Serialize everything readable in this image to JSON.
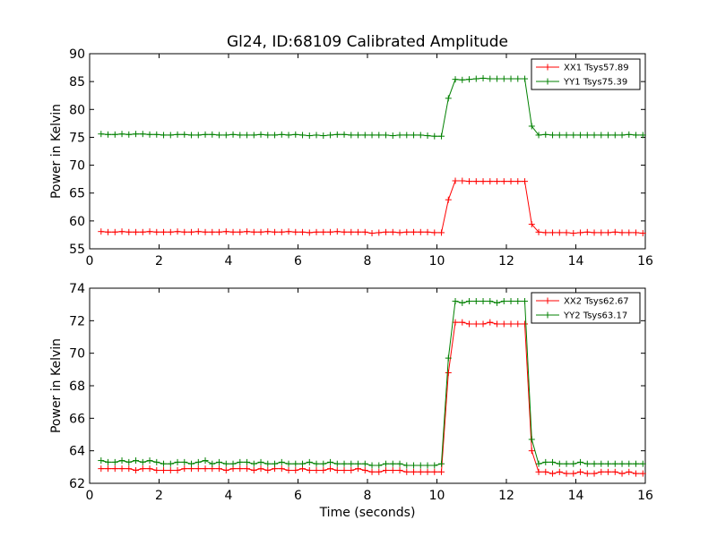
{
  "chart_data": [
    {
      "type": "line",
      "title": "Gl24, ID:68109 Calibrated Amplitude",
      "xlabel": "",
      "ylabel": "Power in Kelvin",
      "xlim": [
        0,
        16
      ],
      "ylim": [
        55,
        90
      ],
      "xticks": [
        "0",
        "2",
        "4",
        "6",
        "8",
        "10",
        "12",
        "14",
        "16"
      ],
      "yticks": [
        "55",
        "60",
        "65",
        "70",
        "75",
        "80",
        "85",
        "90"
      ],
      "grid": false,
      "legend_position": "top-right",
      "x": [
        0.33,
        0.53,
        0.73,
        0.93,
        1.13,
        1.33,
        1.53,
        1.73,
        1.93,
        2.13,
        2.33,
        2.53,
        2.73,
        2.93,
        3.13,
        3.33,
        3.53,
        3.73,
        3.93,
        4.13,
        4.33,
        4.53,
        4.73,
        4.93,
        5.13,
        5.33,
        5.53,
        5.73,
        5.93,
        6.13,
        6.33,
        6.53,
        6.73,
        6.93,
        7.13,
        7.33,
        7.53,
        7.73,
        7.93,
        8.13,
        8.33,
        8.53,
        8.73,
        8.93,
        9.13,
        9.33,
        9.53,
        9.73,
        9.93,
        10.13,
        10.33,
        10.53,
        10.73,
        10.93,
        11.13,
        11.33,
        11.53,
        11.73,
        11.93,
        12.13,
        12.33,
        12.53,
        12.73,
        12.93,
        13.13,
        13.33,
        13.53,
        13.73,
        13.93,
        14.13,
        14.33,
        14.53,
        14.73,
        14.93,
        15.13,
        15.33,
        15.53,
        15.73,
        15.93
      ],
      "series": [
        {
          "name": "XX1 Tsys57.89",
          "color": "#ff0000",
          "values": [
            58.1,
            58.0,
            58.0,
            58.1,
            58.0,
            58.0,
            58.0,
            58.1,
            58.0,
            58.0,
            58.0,
            58.1,
            58.0,
            58.0,
            58.1,
            58.0,
            58.0,
            58.0,
            58.1,
            58.0,
            58.0,
            58.1,
            58.0,
            58.0,
            58.1,
            58.0,
            58.0,
            58.1,
            58.0,
            58.0,
            57.9,
            58.0,
            58.0,
            58.0,
            58.1,
            58.0,
            58.0,
            58.0,
            58.0,
            57.8,
            57.9,
            58.0,
            58.0,
            57.9,
            58.0,
            58.0,
            58.0,
            58.0,
            57.9,
            57.9,
            63.8,
            67.2,
            67.2,
            67.1,
            67.1,
            67.1,
            67.1,
            67.1,
            67.1,
            67.1,
            67.1,
            67.1,
            59.4,
            58.0,
            57.9,
            57.9,
            57.9,
            57.9,
            57.8,
            57.9,
            58.0,
            57.9,
            57.9,
            57.9,
            58.0,
            57.9,
            57.9,
            57.9,
            57.8
          ]
        },
        {
          "name": "YY1 Tsys75.39",
          "color": "#008000",
          "values": [
            75.6,
            75.5,
            75.5,
            75.6,
            75.5,
            75.6,
            75.6,
            75.5,
            75.5,
            75.4,
            75.4,
            75.5,
            75.5,
            75.4,
            75.4,
            75.5,
            75.5,
            75.4,
            75.4,
            75.5,
            75.4,
            75.4,
            75.4,
            75.5,
            75.4,
            75.4,
            75.5,
            75.4,
            75.5,
            75.4,
            75.3,
            75.4,
            75.3,
            75.4,
            75.5,
            75.5,
            75.4,
            75.4,
            75.4,
            75.4,
            75.4,
            75.4,
            75.3,
            75.4,
            75.4,
            75.4,
            75.4,
            75.3,
            75.2,
            75.2,
            82.0,
            85.4,
            85.3,
            85.4,
            85.5,
            85.6,
            85.5,
            85.5,
            85.5,
            85.5,
            85.5,
            85.5,
            77.0,
            75.4,
            75.5,
            75.4,
            75.4,
            75.4,
            75.4,
            75.4,
            75.4,
            75.4,
            75.4,
            75.4,
            75.4,
            75.4,
            75.5,
            75.4,
            75.4
          ]
        }
      ]
    },
    {
      "type": "line",
      "title": "",
      "xlabel": "Time (seconds)",
      "ylabel": "Power in Kelvin",
      "xlim": [
        0,
        16
      ],
      "ylim": [
        62,
        74
      ],
      "xticks": [
        "0",
        "2",
        "4",
        "6",
        "8",
        "10",
        "12",
        "14",
        "16"
      ],
      "yticks": [
        "62",
        "64",
        "66",
        "68",
        "70",
        "72",
        "74"
      ],
      "grid": false,
      "legend_position": "top-right",
      "x": [
        0.33,
        0.53,
        0.73,
        0.93,
        1.13,
        1.33,
        1.53,
        1.73,
        1.93,
        2.13,
        2.33,
        2.53,
        2.73,
        2.93,
        3.13,
        3.33,
        3.53,
        3.73,
        3.93,
        4.13,
        4.33,
        4.53,
        4.73,
        4.93,
        5.13,
        5.33,
        5.53,
        5.73,
        5.93,
        6.13,
        6.33,
        6.53,
        6.73,
        6.93,
        7.13,
        7.33,
        7.53,
        7.73,
        7.93,
        8.13,
        8.33,
        8.53,
        8.73,
        8.93,
        9.13,
        9.33,
        9.53,
        9.73,
        9.93,
        10.13,
        10.33,
        10.53,
        10.73,
        10.93,
        11.13,
        11.33,
        11.53,
        11.73,
        11.93,
        12.13,
        12.33,
        12.53,
        12.73,
        12.93,
        13.13,
        13.33,
        13.53,
        13.73,
        13.93,
        14.13,
        14.33,
        14.53,
        14.73,
        14.93,
        15.13,
        15.33,
        15.53,
        15.73,
        15.93
      ],
      "series": [
        {
          "name": "XX2 Tsys62.67",
          "color": "#ff0000",
          "values": [
            62.9,
            62.9,
            62.9,
            62.9,
            62.9,
            62.8,
            62.9,
            62.9,
            62.8,
            62.8,
            62.8,
            62.8,
            62.9,
            62.9,
            62.9,
            62.9,
            62.9,
            62.9,
            62.8,
            62.9,
            62.9,
            62.9,
            62.8,
            62.9,
            62.8,
            62.9,
            62.9,
            62.8,
            62.8,
            62.9,
            62.8,
            62.8,
            62.8,
            62.9,
            62.8,
            62.8,
            62.8,
            62.9,
            62.8,
            62.7,
            62.7,
            62.8,
            62.8,
            62.8,
            62.7,
            62.7,
            62.7,
            62.7,
            62.7,
            62.7,
            68.8,
            71.9,
            71.9,
            71.8,
            71.8,
            71.8,
            71.9,
            71.8,
            71.8,
            71.8,
            71.8,
            71.8,
            64.0,
            62.7,
            62.7,
            62.6,
            62.7,
            62.6,
            62.6,
            62.7,
            62.6,
            62.6,
            62.7,
            62.7,
            62.7,
            62.6,
            62.7,
            62.6,
            62.6
          ]
        },
        {
          "name": "YY2 Tsys63.17",
          "color": "#008000",
          "values": [
            63.4,
            63.3,
            63.3,
            63.4,
            63.3,
            63.4,
            63.3,
            63.4,
            63.3,
            63.2,
            63.2,
            63.3,
            63.3,
            63.2,
            63.3,
            63.4,
            63.2,
            63.3,
            63.2,
            63.2,
            63.3,
            63.3,
            63.2,
            63.3,
            63.2,
            63.2,
            63.3,
            63.2,
            63.2,
            63.2,
            63.3,
            63.2,
            63.2,
            63.3,
            63.2,
            63.2,
            63.2,
            63.2,
            63.2,
            63.1,
            63.1,
            63.2,
            63.2,
            63.2,
            63.1,
            63.1,
            63.1,
            63.1,
            63.1,
            63.2,
            69.7,
            73.2,
            73.1,
            73.2,
            73.2,
            73.2,
            73.2,
            73.1,
            73.2,
            73.2,
            73.2,
            73.2,
            64.7,
            63.2,
            63.3,
            63.3,
            63.2,
            63.2,
            63.2,
            63.3,
            63.2,
            63.2,
            63.2,
            63.2,
            63.2,
            63.2,
            63.2,
            63.2,
            63.2
          ]
        }
      ]
    }
  ]
}
